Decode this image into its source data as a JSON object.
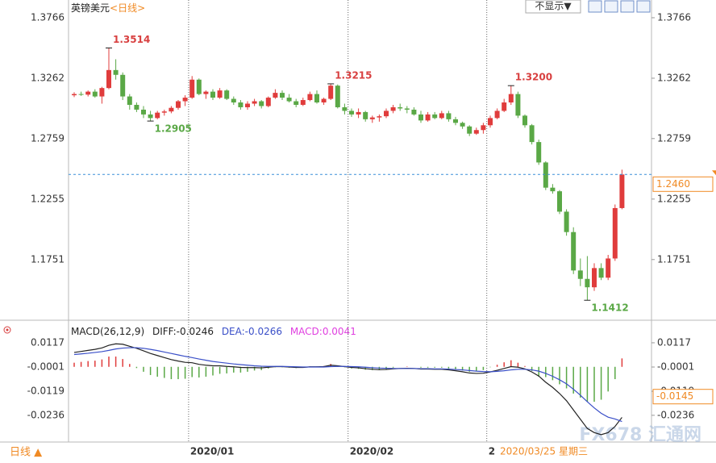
{
  "chart_data": {
    "type": "candlestick",
    "title": "英镑美元",
    "period": "<日线>",
    "display_button": "不显示▼",
    "period_button": "日线 ▲",
    "watermark": "FX678 汇通网",
    "cursor_date": "2020/03/25 星期三",
    "up_color": "#e03c3c",
    "down_color": "#5aa846",
    "ylim": [
      1.1259,
      1.388
    ],
    "yticks": [
      1.3766,
      1.3262,
      1.2759,
      1.2255,
      1.1751
    ],
    "last_price": {
      "value": 1.246,
      "label": "1.2460"
    },
    "categories": [
      null,
      null,
      null,
      null,
      null,
      null,
      null,
      null,
      null,
      null,
      null,
      null,
      null,
      null,
      null,
      null,
      null,
      "2020/01",
      null,
      null,
      null,
      null,
      null,
      null,
      null,
      null,
      null,
      null,
      null,
      null,
      null,
      null,
      null,
      null,
      null,
      null,
      null,
      null,
      null,
      null,
      "2020/02",
      null,
      null,
      null,
      null,
      null,
      null,
      null,
      null,
      null,
      null,
      null,
      null,
      null,
      null,
      null,
      null,
      null,
      null,
      null,
      "2",
      null,
      null,
      null,
      null,
      null,
      null,
      null,
      null,
      null,
      null,
      null,
      null,
      null,
      null,
      null,
      null,
      null,
      null,
      null
    ],
    "ohlc": [
      [
        1.312,
        1.3145,
        1.3105,
        1.313
      ],
      [
        1.313,
        1.315,
        1.3115,
        1.3125
      ],
      [
        1.3125,
        1.316,
        1.311,
        1.315
      ],
      [
        1.315,
        1.317,
        1.31,
        1.311
      ],
      [
        1.311,
        1.319,
        1.305,
        1.318
      ],
      [
        1.318,
        1.3514,
        1.317,
        1.333
      ],
      [
        1.333,
        1.342,
        1.325,
        1.329
      ],
      [
        1.329,
        1.331,
        1.308,
        1.311
      ],
      [
        1.311,
        1.313,
        1.3,
        1.304
      ],
      [
        1.304,
        1.306,
        1.298,
        1.3
      ],
      [
        1.3,
        1.303,
        1.293,
        1.296
      ],
      [
        1.296,
        1.299,
        1.2905,
        1.293
      ],
      [
        1.293,
        1.299,
        1.292,
        1.2975
      ],
      [
        1.2975,
        1.3,
        1.295,
        1.2985
      ],
      [
        1.2985,
        1.303,
        1.297,
        1.3015
      ],
      [
        1.3015,
        1.308,
        1.3,
        1.307
      ],
      [
        1.307,
        1.312,
        1.303,
        1.31
      ],
      [
        1.31,
        1.328,
        1.309,
        1.325
      ],
      [
        1.325,
        1.326,
        1.312,
        1.313
      ],
      [
        1.313,
        1.316,
        1.309,
        1.315
      ],
      [
        1.315,
        1.317,
        1.308,
        1.31
      ],
      [
        1.31,
        1.318,
        1.309,
        1.316
      ],
      [
        1.316,
        1.317,
        1.308,
        1.309
      ],
      [
        1.309,
        1.311,
        1.304,
        1.306
      ],
      [
        1.306,
        1.308,
        1.3,
        1.302
      ],
      [
        1.302,
        1.307,
        1.3,
        1.305
      ],
      [
        1.305,
        1.309,
        1.303,
        1.307
      ],
      [
        1.307,
        1.308,
        1.301,
        1.303
      ],
      [
        1.303,
        1.311,
        1.302,
        1.31
      ],
      [
        1.31,
        1.317,
        1.309,
        1.314
      ],
      [
        1.314,
        1.316,
        1.308,
        1.31
      ],
      [
        1.31,
        1.313,
        1.306,
        1.307
      ],
      [
        1.307,
        1.309,
        1.302,
        1.304
      ],
      [
        1.304,
        1.31,
        1.303,
        1.308
      ],
      [
        1.308,
        1.315,
        1.307,
        1.313
      ],
      [
        1.313,
        1.316,
        1.305,
        1.306
      ],
      [
        1.306,
        1.31,
        1.304,
        1.309
      ],
      [
        1.309,
        1.3215,
        1.308,
        1.32
      ],
      [
        1.32,
        1.321,
        1.301,
        1.302
      ],
      [
        1.302,
        1.305,
        1.296,
        1.299
      ],
      [
        1.299,
        1.301,
        1.294,
        1.296
      ],
      [
        1.296,
        1.301,
        1.293,
        1.298
      ],
      [
        1.298,
        1.299,
        1.29,
        1.292
      ],
      [
        1.292,
        1.295,
        1.289,
        1.2935
      ],
      [
        1.2935,
        1.296,
        1.29,
        1.2945
      ],
      [
        1.2945,
        1.301,
        1.293,
        1.299
      ],
      [
        1.299,
        1.304,
        1.297,
        1.302
      ],
      [
        1.302,
        1.305,
        1.299,
        1.301
      ],
      [
        1.301,
        1.303,
        1.297,
        1.3
      ],
      [
        1.3,
        1.302,
        1.295,
        1.296
      ],
      [
        1.296,
        1.299,
        1.289,
        1.291
      ],
      [
        1.291,
        1.298,
        1.29,
        1.296
      ],
      [
        1.296,
        1.298,
        1.292,
        1.293
      ],
      [
        1.293,
        1.299,
        1.292,
        1.297
      ],
      [
        1.297,
        1.299,
        1.29,
        1.292
      ],
      [
        1.292,
        1.294,
        1.287,
        1.289
      ],
      [
        1.289,
        1.29,
        1.284,
        1.286
      ],
      [
        1.286,
        1.287,
        1.278,
        1.28
      ],
      [
        1.28,
        1.285,
        1.279,
        1.283
      ],
      [
        1.283,
        1.289,
        1.28,
        1.287
      ],
      [
        1.287,
        1.295,
        1.285,
        1.293
      ],
      [
        1.293,
        1.301,
        1.292,
        1.299
      ],
      [
        1.299,
        1.309,
        1.298,
        1.306
      ],
      [
        1.306,
        1.32,
        1.304,
        1.313
      ],
      [
        1.313,
        1.315,
        1.293,
        1.295
      ],
      [
        1.295,
        1.296,
        1.285,
        1.287
      ],
      [
        1.287,
        1.288,
        1.271,
        1.273
      ],
      [
        1.273,
        1.275,
        1.254,
        1.256
      ],
      [
        1.256,
        1.257,
        1.233,
        1.235
      ],
      [
        1.235,
        1.238,
        1.23,
        1.232
      ],
      [
        1.232,
        1.233,
        1.213,
        1.215
      ],
      [
        1.215,
        1.217,
        1.195,
        1.198
      ],
      [
        1.198,
        1.202,
        1.163,
        1.166
      ],
      [
        1.166,
        1.176,
        1.153,
        1.159
      ],
      [
        1.159,
        1.178,
        1.1412,
        1.152
      ],
      [
        1.152,
        1.172,
        1.149,
        1.168
      ],
      [
        1.168,
        1.172,
        1.158,
        1.16
      ],
      [
        1.16,
        1.179,
        1.158,
        1.176
      ],
      [
        1.176,
        1.221,
        1.174,
        1.218
      ],
      [
        1.218,
        1.25,
        1.217,
        1.246
      ]
    ],
    "annotations": [
      {
        "candle": 5,
        "value": 1.3514,
        "label": "1.3514",
        "color": "#d84040",
        "side": "high"
      },
      {
        "candle": 11,
        "value": 1.2905,
        "label": "1.2905",
        "color": "#5aa846",
        "side": "low"
      },
      {
        "candle": 37,
        "value": 1.3215,
        "label": "1.3215",
        "color": "#d84040",
        "side": "high"
      },
      {
        "candle": 63,
        "value": 1.32,
        "label": "1.3200",
        "color": "#d84040",
        "side": "high"
      },
      {
        "candle": 74,
        "value": 1.1412,
        "label": "1.1412",
        "color": "#5aa846",
        "side": "low"
      }
    ],
    "macd": {
      "legend": [
        "MACD(26,12,9)",
        "DIFF:-0.0246",
        "DEA:-0.0266",
        "MACD:0.0041"
      ],
      "legend_colors": [
        "#222222",
        "#222222",
        "#3a4fc8",
        "#e040e0"
      ],
      "ylim": [
        -0.0366,
        0.0215
      ],
      "yticks": [
        0.0117,
        -0.0001,
        -0.0119,
        -0.0236
      ],
      "cursor_value": -0.0145,
      "diff_color": "#222222",
      "dea_color": "#3a4fc8",
      "diff": [
        0.007,
        0.0075,
        0.008,
        0.0085,
        0.0092,
        0.0105,
        0.0112,
        0.011,
        0.01,
        0.009,
        0.0078,
        0.0065,
        0.0055,
        0.0045,
        0.0035,
        0.0028,
        0.0022,
        0.002,
        0.0012,
        0.0008,
        0.0005,
        0.0005,
        0.0002,
        0.0,
        -0.0003,
        -0.0004,
        -0.0004,
        -0.0005,
        -0.0002,
        0.0001,
        0.0001,
        -0.0001,
        -0.0003,
        -0.0003,
        0.0,
        0.0,
        0.0001,
        0.0008,
        0.0005,
        0.0001,
        -0.0003,
        -0.0005,
        -0.0009,
        -0.0012,
        -0.0014,
        -0.0013,
        -0.001,
        -0.0008,
        -0.0007,
        -0.0008,
        -0.0011,
        -0.0011,
        -0.0012,
        -0.0012,
        -0.0015,
        -0.0019,
        -0.0024,
        -0.003,
        -0.0032,
        -0.0031,
        -0.0025,
        -0.0017,
        -0.0008,
        0.0001,
        -0.0002,
        -0.001,
        -0.0025,
        -0.0045,
        -0.0075,
        -0.01,
        -0.013,
        -0.0165,
        -0.021,
        -0.0255,
        -0.03,
        -0.032,
        -0.033,
        -0.032,
        -0.029,
        -0.0246
      ],
      "dea": [
        0.006,
        0.0063,
        0.0066,
        0.007,
        0.0074,
        0.008,
        0.0087,
        0.0091,
        0.0093,
        0.0093,
        0.009,
        0.0085,
        0.0079,
        0.0072,
        0.0065,
        0.0058,
        0.0051,
        0.0045,
        0.0038,
        0.0032,
        0.0026,
        0.0022,
        0.0018,
        0.0014,
        0.0011,
        0.0008,
        0.0005,
        0.0003,
        0.0002,
        0.0002,
        0.0002,
        0.0001,
        0.0,
        -0.0001,
        -0.0001,
        -0.0001,
        -0.0001,
        0.0001,
        0.0002,
        0.0002,
        0.0001,
        0.0,
        -0.0002,
        -0.0004,
        -0.0006,
        -0.0007,
        -0.0008,
        -0.0008,
        -0.0008,
        -0.0008,
        -0.0009,
        -0.0009,
        -0.001,
        -0.001,
        -0.0011,
        -0.0013,
        -0.0015,
        -0.0018,
        -0.0021,
        -0.0023,
        -0.0024,
        -0.0022,
        -0.0019,
        -0.0015,
        -0.0012,
        -0.0012,
        -0.0015,
        -0.0021,
        -0.0032,
        -0.0046,
        -0.0063,
        -0.0083,
        -0.0109,
        -0.0138,
        -0.017,
        -0.02,
        -0.0226,
        -0.0245,
        -0.0254,
        -0.0266
      ],
      "histogram": [
        0.002,
        0.0024,
        0.0028,
        0.003,
        0.0036,
        0.005,
        0.005,
        0.0038,
        0.0014,
        -0.0006,
        -0.0024,
        -0.004,
        -0.0048,
        -0.0054,
        -0.006,
        -0.006,
        -0.0058,
        -0.005,
        -0.0052,
        -0.0048,
        -0.0042,
        -0.0034,
        -0.0032,
        -0.0028,
        -0.0028,
        -0.0024,
        -0.0018,
        -0.0016,
        -0.0008,
        -0.0002,
        -0.0002,
        -0.0004,
        -0.0006,
        -0.0004,
        0.0002,
        0.0002,
        0.0004,
        0.0014,
        0.0006,
        -0.0002,
        -0.0008,
        -0.001,
        -0.0014,
        -0.0016,
        -0.0016,
        -0.0012,
        -0.0004,
        0.0,
        0.0002,
        0.0,
        -0.0004,
        -0.0004,
        -0.0004,
        -0.0004,
        -0.0008,
        -0.0012,
        -0.0018,
        -0.0024,
        -0.0022,
        -0.0016,
        -0.0002,
        0.001,
        0.0022,
        0.0032,
        0.002,
        0.0004,
        -0.002,
        -0.0048,
        -0.005,
        -0.0065,
        -0.0085,
        -0.0105,
        -0.013,
        -0.015,
        -0.017,
        -0.017,
        -0.016,
        -0.012,
        -0.006,
        0.0041
      ]
    }
  }
}
